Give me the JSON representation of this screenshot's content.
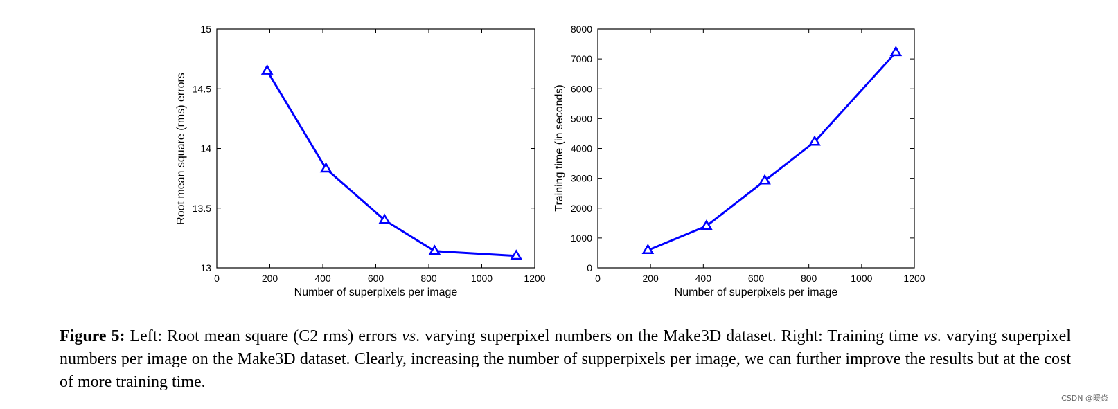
{
  "chart_data": [
    {
      "type": "line",
      "title": "",
      "xlabel": "",
      "ylabel": "Root mean square (rms) errors",
      "xlim": [
        0,
        1200
      ],
      "ylim": [
        13,
        15
      ],
      "xticks": [
        0,
        200,
        400,
        600,
        800,
        1000,
        1200
      ],
      "yticks": [
        13,
        13.5,
        14,
        14.5,
        15
      ],
      "xtick_labels": [
        "0",
        "200",
        "400",
        "600",
        "800",
        "1000",
        "1200"
      ],
      "ytick_labels": [
        "13",
        "13.5",
        "14",
        "14.5",
        "15"
      ],
      "series": [
        {
          "name": "rms errors",
          "color": "#0000ff",
          "marker": "triangle",
          "x": [
            190,
            412,
            633,
            822,
            1130
          ],
          "values": [
            14.65,
            13.83,
            13.4,
            13.14,
            13.1
          ]
        }
      ]
    },
    {
      "type": "line",
      "title": "",
      "xlabel": "",
      "ylabel": "Training time (in seconds)",
      "xlim": [
        0,
        1200
      ],
      "ylim": [
        0,
        8000
      ],
      "xticks": [
        0,
        200,
        400,
        600,
        800,
        1000,
        1200
      ],
      "yticks": [
        0,
        1000,
        2000,
        3000,
        4000,
        5000,
        6000,
        7000,
        8000
      ],
      "xtick_labels": [
        "0",
        "200",
        "400",
        "600",
        "800",
        "1000",
        "1200"
      ],
      "ytick_labels": [
        "0",
        "1000",
        "2000",
        "3000",
        "4000",
        "5000",
        "6000",
        "7000",
        "8000"
      ],
      "series": [
        {
          "name": "training time",
          "color": "#0000ff",
          "marker": "triangle",
          "x": [
            190,
            412,
            633,
            822,
            1130
          ],
          "values": [
            590,
            1400,
            2920,
            4220,
            7220
          ]
        }
      ]
    }
  ],
  "shared": {
    "xlabel": "Number of superpixels per image"
  },
  "caption": {
    "label": "Figure 5:",
    "t1": " Left: Root mean square (C2 rms) errors ",
    "vs1": "vs",
    "t2": ". varying superpixel numbers on the Make3D dataset. Right: Training time ",
    "vs2": "vs",
    "t3": ". varying superpixel numbers per image on the Make3D dataset. Clearly, increasing the number of supperpixels per image, we can further improve the results but at the cost of more training time."
  },
  "watermark": "CSDN @暖焱"
}
